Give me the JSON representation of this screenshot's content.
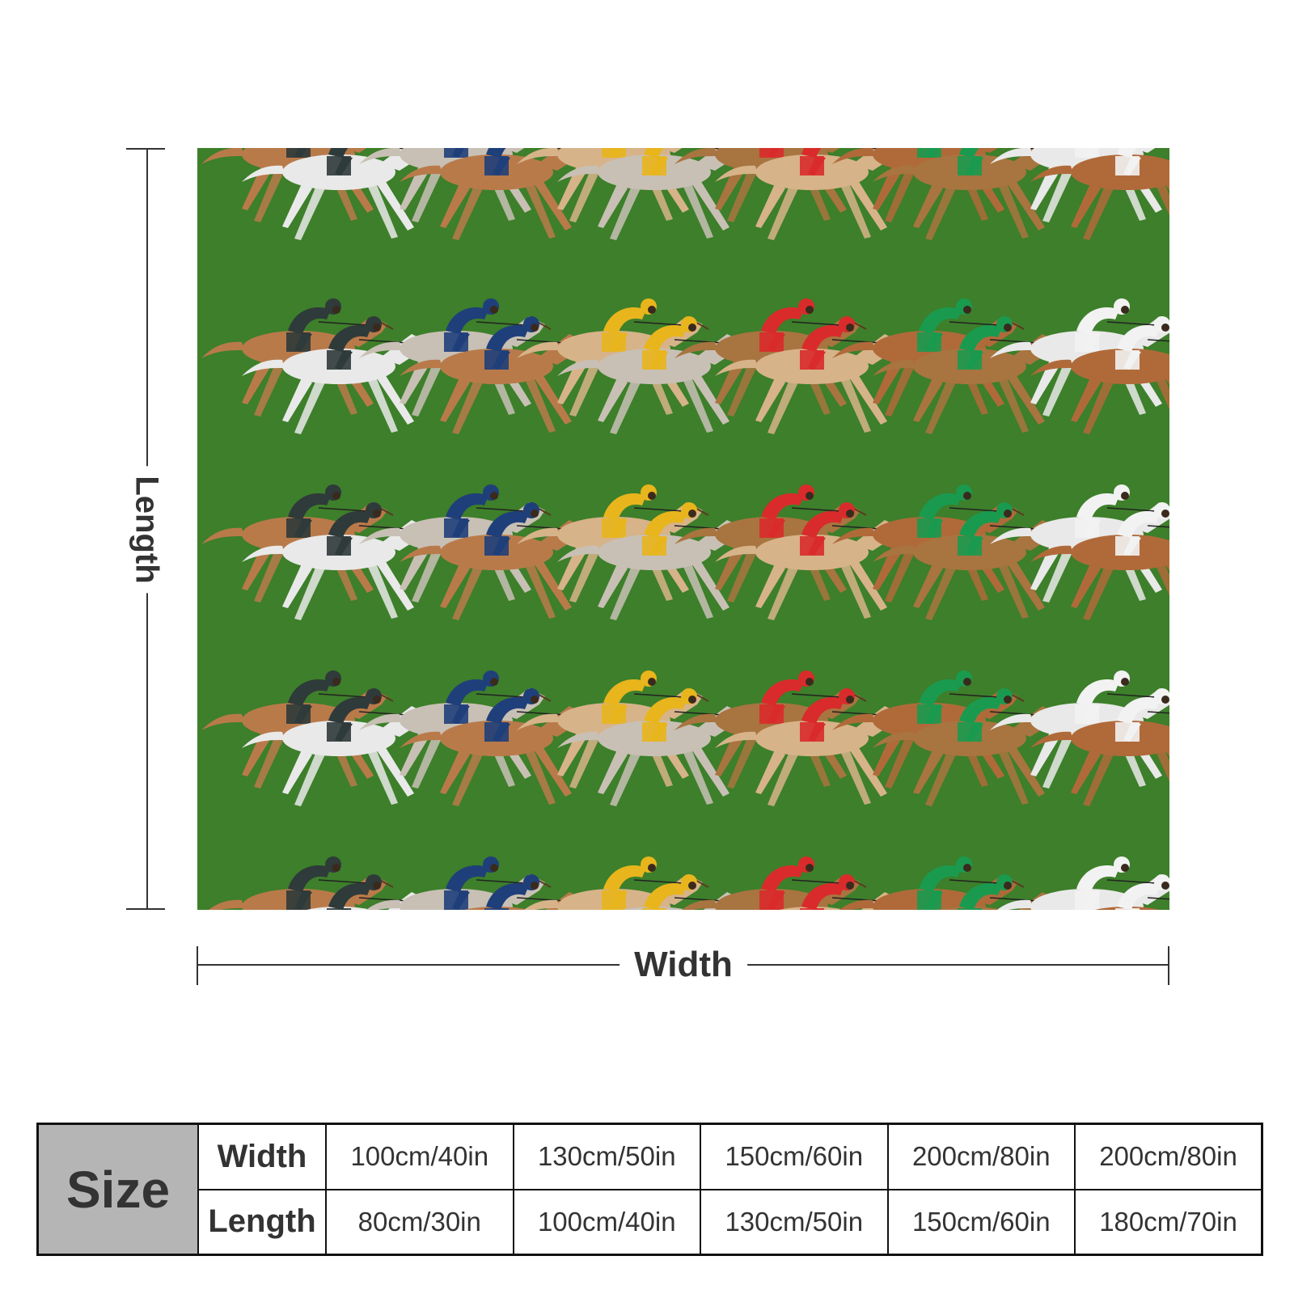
{
  "dimensions": {
    "length_label": "Length",
    "width_label": "Width"
  },
  "size_table": {
    "header": "Size",
    "rows": [
      {
        "label": "Width",
        "values": [
          "100cm/40in",
          "130cm/50in",
          "150cm/60in",
          "200cm/80in",
          "200cm/80in"
        ]
      },
      {
        "label": "Length",
        "values": [
          "80cm/30in",
          "100cm/40in",
          "130cm/50in",
          "150cm/60in",
          "180cm/70in"
        ]
      }
    ]
  },
  "product_image": {
    "background_color": "#3d7f2a",
    "jockey_colors": [
      "#2f3a3a",
      "#1f3f7a",
      "#e8b51c",
      "#d92b2b",
      "#1a9a4f",
      "#f2f2f2"
    ],
    "horse_colors": [
      "#e9e9e9",
      "#b97a4a",
      "#c8c0b5",
      "#d7b38a",
      "#a8743f",
      "#b06a3a"
    ]
  }
}
